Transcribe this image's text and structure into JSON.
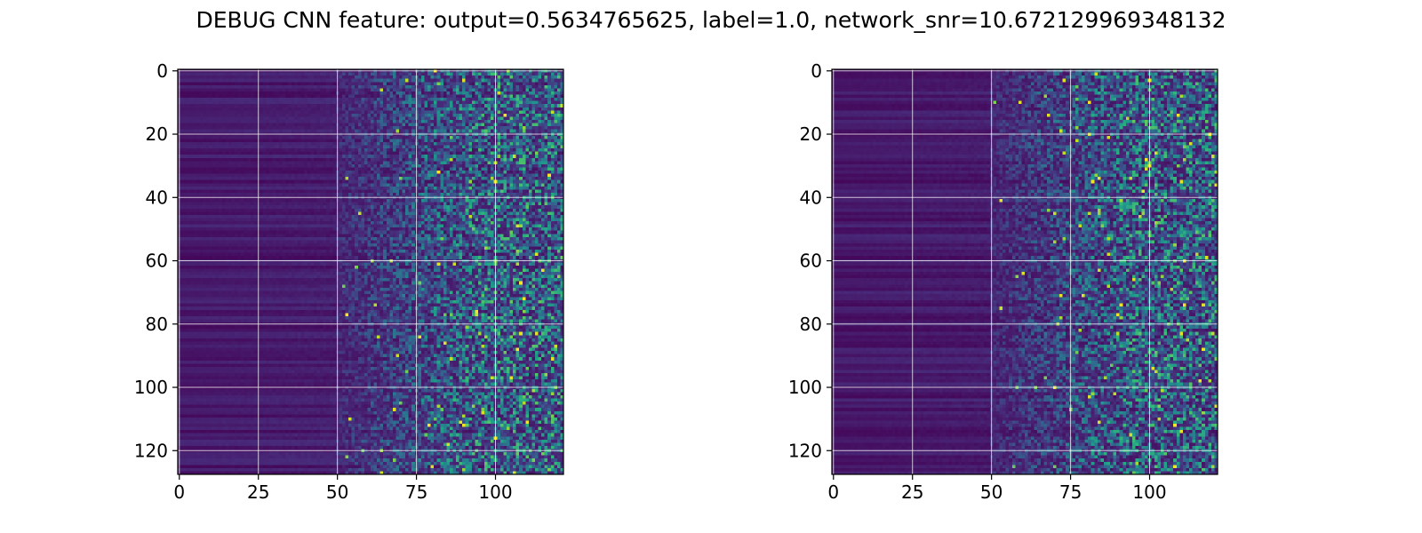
{
  "title": "DEBUG CNN feature: output=0.5634765625, label=1.0, network_snr=10.672129969348132",
  "colors": {
    "colormap": "viridis",
    "low": "#440154",
    "mid": "#21918c",
    "high": "#fde725",
    "grid": "#ffffff",
    "axes": "#000000"
  },
  "chart_data": [
    {
      "type": "heatmap",
      "title": "",
      "xlabel": "",
      "ylabel": "",
      "rows": 128,
      "cols": 122,
      "xlim": [
        -0.5,
        121.5
      ],
      "ylim": [
        127.5,
        -0.5
      ],
      "y_inverted": true,
      "grid": true,
      "xticks": [
        0,
        25,
        50,
        75,
        100
      ],
      "yticks": [
        0,
        20,
        40,
        60,
        80,
        100,
        120
      ],
      "colormap": "viridis",
      "value_range": [
        0,
        1
      ],
      "pattern": "low, row-banded values for columns 0-50; increasingly noisy higher values for columns 50-121 with sparse bright peaks"
    },
    {
      "type": "heatmap",
      "title": "",
      "xlabel": "",
      "ylabel": "",
      "rows": 128,
      "cols": 122,
      "xlim": [
        -0.5,
        121.5
      ],
      "ylim": [
        127.5,
        -0.5
      ],
      "y_inverted": true,
      "grid": true,
      "xticks": [
        0,
        25,
        50,
        75,
        100
      ],
      "yticks": [
        0,
        20,
        40,
        60,
        80,
        100,
        120
      ],
      "colormap": "viridis",
      "value_range": [
        0,
        1
      ],
      "pattern": "low, row-banded values for columns 0-50; increasingly noisy higher values for columns 50-121 with sparse bright peaks"
    }
  ]
}
